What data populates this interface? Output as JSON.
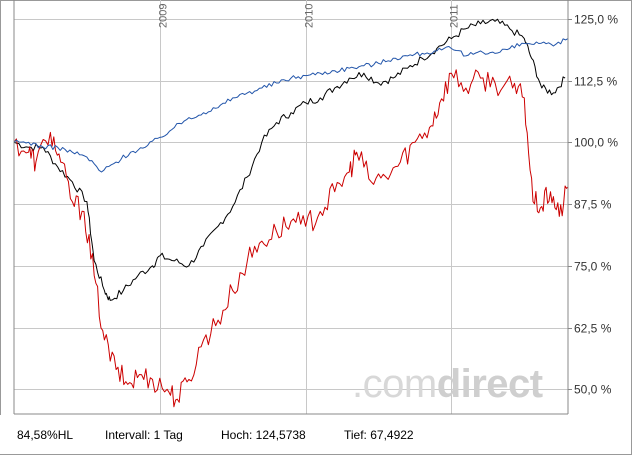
{
  "watermark": {
    "prefix": ".com",
    "suffix": "direct"
  },
  "footer": {
    "left_label": "84,58%HL",
    "interval": "Intervall: 1 Tag",
    "high": "Hoch: 124,5738",
    "low": "Tief: 67,4922"
  },
  "colors": {
    "black_series": "#000000",
    "red_series": "#cc0000",
    "blue_series": "#2255aa",
    "grid": "#c8c8c8"
  },
  "chart_data": {
    "type": "line",
    "x_tick_labels": [
      "2009",
      "2010",
      "2011"
    ],
    "x_ticks": [
      2009.0,
      2010.0,
      2011.0
    ],
    "x_range": [
      2008.0,
      2011.8
    ],
    "ylim": [
      45,
      128
    ],
    "y_ticks": [
      50,
      62.5,
      75,
      87.5,
      100,
      112.5,
      125
    ],
    "y_tick_labels": [
      "50,0 %",
      "62,5 %",
      "75,0 %",
      "87,5 %",
      "100,0 %",
      "112,5 %",
      "125,0 %"
    ],
    "grid": true,
    "series": [
      {
        "color": "black",
        "points": [
          [
            2008.0,
            100
          ],
          [
            2008.1,
            99
          ],
          [
            2008.2,
            99
          ],
          [
            2008.3,
            95
          ],
          [
            2008.4,
            92
          ],
          [
            2008.5,
            88
          ],
          [
            2008.55,
            76
          ],
          [
            2008.62,
            70
          ],
          [
            2008.66,
            68
          ],
          [
            2008.75,
            70
          ],
          [
            2008.85,
            73
          ],
          [
            2008.95,
            75
          ],
          [
            2009.0,
            77
          ],
          [
            2009.1,
            76
          ],
          [
            2009.2,
            75
          ],
          [
            2009.3,
            79
          ],
          [
            2009.4,
            83
          ],
          [
            2009.5,
            87
          ],
          [
            2009.6,
            93
          ],
          [
            2009.7,
            100
          ],
          [
            2009.8,
            104
          ],
          [
            2009.9,
            106
          ],
          [
            2010.0,
            108
          ],
          [
            2010.1,
            109
          ],
          [
            2010.2,
            111
          ],
          [
            2010.3,
            113
          ],
          [
            2010.4,
            114
          ],
          [
            2010.5,
            112
          ],
          [
            2010.6,
            113
          ],
          [
            2010.7,
            115
          ],
          [
            2010.8,
            117
          ],
          [
            2010.9,
            119
          ],
          [
            2011.0,
            121
          ],
          [
            2011.1,
            123
          ],
          [
            2011.2,
            124
          ],
          [
            2011.3,
            124.5
          ],
          [
            2011.4,
            123
          ],
          [
            2011.5,
            121
          ],
          [
            2011.55,
            117
          ],
          [
            2011.62,
            111
          ],
          [
            2011.7,
            110
          ],
          [
            2011.78,
            113
          ]
        ]
      },
      {
        "color": "red",
        "points": [
          [
            2008.0,
            100
          ],
          [
            2008.1,
            98
          ],
          [
            2008.15,
            96
          ],
          [
            2008.25,
            102
          ],
          [
            2008.32,
            96
          ],
          [
            2008.4,
            88
          ],
          [
            2008.48,
            86
          ],
          [
            2008.55,
            73
          ],
          [
            2008.62,
            60
          ],
          [
            2008.7,
            54
          ],
          [
            2008.78,
            51
          ],
          [
            2008.86,
            53
          ],
          [
            2008.95,
            52
          ],
          [
            2009.05,
            50
          ],
          [
            2009.12,
            48
          ],
          [
            2009.2,
            52
          ],
          [
            2009.3,
            60
          ],
          [
            2009.4,
            64
          ],
          [
            2009.5,
            70
          ],
          [
            2009.6,
            76
          ],
          [
            2009.7,
            80
          ],
          [
            2009.8,
            82
          ],
          [
            2009.9,
            84
          ],
          [
            2010.0,
            83
          ],
          [
            2010.1,
            86
          ],
          [
            2010.2,
            90
          ],
          [
            2010.3,
            94
          ],
          [
            2010.35,
            98
          ],
          [
            2010.45,
            92
          ],
          [
            2010.55,
            93
          ],
          [
            2010.65,
            96
          ],
          [
            2010.75,
            100
          ],
          [
            2010.85,
            103
          ],
          [
            2010.92,
            108
          ],
          [
            2011.0,
            114
          ],
          [
            2011.1,
            111
          ],
          [
            2011.2,
            113
          ],
          [
            2011.3,
            112
          ],
          [
            2011.42,
            111
          ],
          [
            2011.5,
            109
          ],
          [
            2011.56,
            88
          ],
          [
            2011.62,
            87
          ],
          [
            2011.68,
            90
          ],
          [
            2011.74,
            85
          ],
          [
            2011.8,
            91
          ]
        ]
      },
      {
        "color": "blue",
        "points": [
          [
            2008.0,
            100
          ],
          [
            2008.1,
            100
          ],
          [
            2008.2,
            99
          ],
          [
            2008.3,
            99
          ],
          [
            2008.4,
            98
          ],
          [
            2008.5,
            97
          ],
          [
            2008.6,
            94
          ],
          [
            2008.7,
            96
          ],
          [
            2008.8,
            98
          ],
          [
            2008.9,
            99
          ],
          [
            2009.0,
            101
          ],
          [
            2009.1,
            103
          ],
          [
            2009.2,
            105
          ],
          [
            2009.3,
            106
          ],
          [
            2009.4,
            107
          ],
          [
            2009.5,
            109
          ],
          [
            2009.6,
            110
          ],
          [
            2009.7,
            111
          ],
          [
            2009.8,
            112
          ],
          [
            2009.9,
            113
          ],
          [
            2010.0,
            113.5
          ],
          [
            2010.1,
            114
          ],
          [
            2010.2,
            114.5
          ],
          [
            2010.3,
            115
          ],
          [
            2010.4,
            115.5
          ],
          [
            2010.5,
            116
          ],
          [
            2010.6,
            117
          ],
          [
            2010.7,
            117.5
          ],
          [
            2010.8,
            118
          ],
          [
            2010.9,
            118.5
          ],
          [
            2011.0,
            119
          ],
          [
            2011.1,
            117.5
          ],
          [
            2011.2,
            118.5
          ],
          [
            2011.3,
            118
          ],
          [
            2011.4,
            119
          ],
          [
            2011.5,
            120
          ],
          [
            2011.6,
            120
          ],
          [
            2011.7,
            119.5
          ],
          [
            2011.8,
            121
          ]
        ]
      }
    ]
  }
}
